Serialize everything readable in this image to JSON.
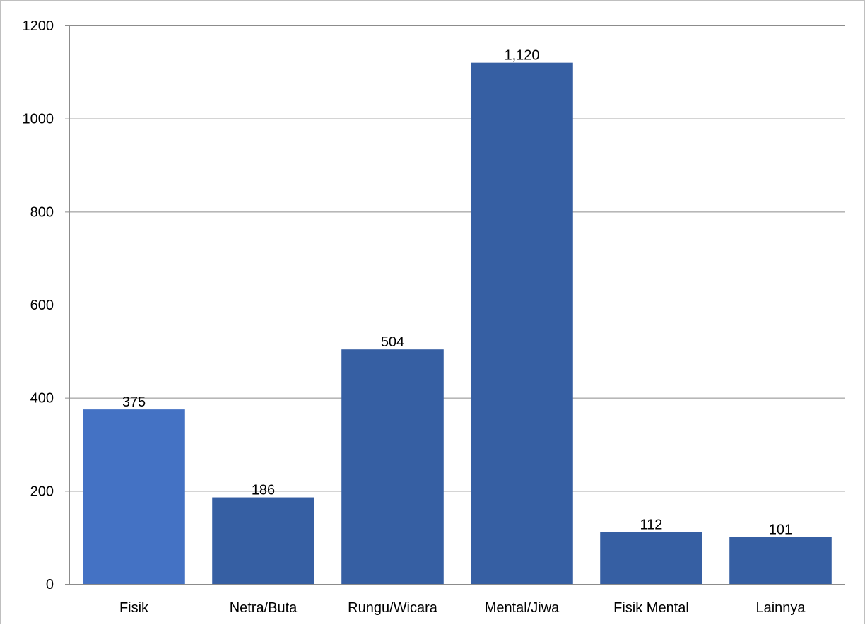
{
  "chart_data": {
    "type": "bar",
    "title": "",
    "xlabel": "",
    "ylabel": "",
    "categories": [
      "Fisik",
      "Netra/Buta",
      "Rungu/Wicara",
      "Mental/Jiwa",
      "Fisik Mental",
      "Lainnya"
    ],
    "values": [
      375,
      186,
      504,
      1120,
      112,
      101
    ],
    "data_labels": [
      "375",
      "186",
      "504",
      "1,120",
      "112",
      "101"
    ],
    "y_ticks": [
      0,
      200,
      400,
      600,
      800,
      1000,
      1200
    ],
    "ylim": [
      0,
      1200
    ],
    "grid": true,
    "legend": "none",
    "colors": {
      "bar": "#365fa3",
      "bar_highlight": "#4472c4",
      "gridline": "#8c8c8c",
      "axis": "#8c8c8c"
    }
  }
}
